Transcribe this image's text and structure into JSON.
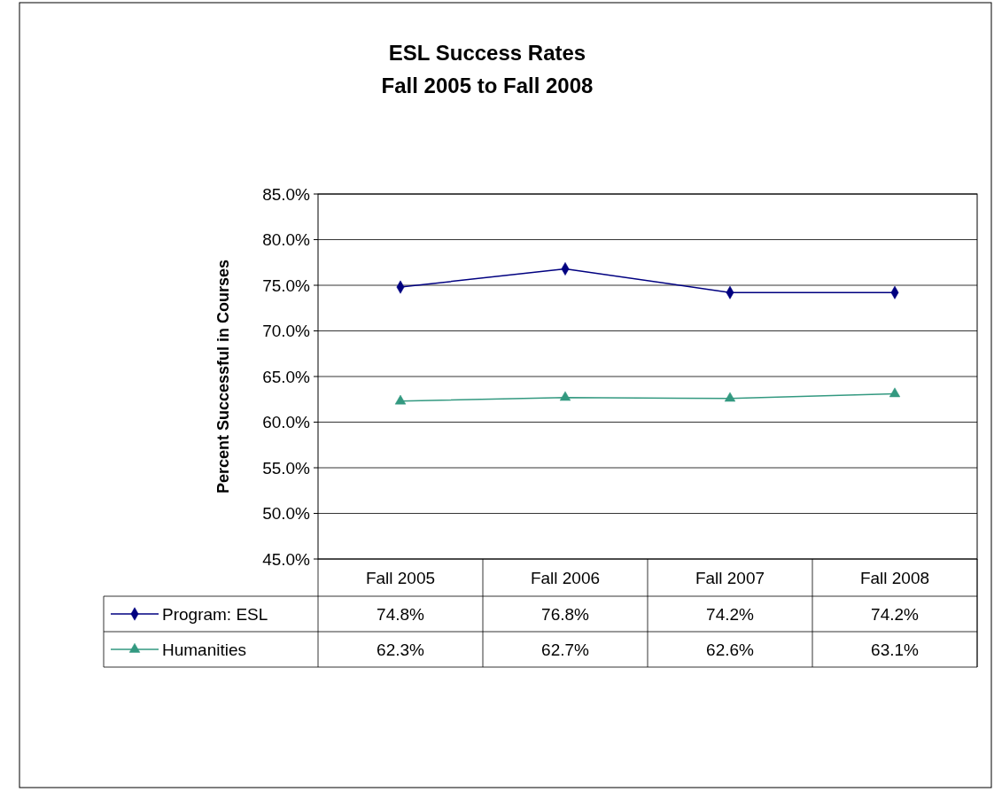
{
  "chart_data": {
    "type": "line",
    "title": "ESL Success Rates\nFall 2005 to Fall 2008",
    "ylabel": "Percent Successful in Courses",
    "categories": [
      "Fall 2005",
      "Fall 2006",
      "Fall 2007",
      "Fall 2008"
    ],
    "series": [
      {
        "name": "Program: ESL",
        "color": "#000080",
        "marker": "diamond",
        "values": [
          74.8,
          76.8,
          74.2,
          74.2
        ],
        "value_labels": [
          "74.8%",
          "76.8%",
          "74.2%",
          "74.2%"
        ]
      },
      {
        "name": "Humanities",
        "color": "#339980",
        "marker": "triangle",
        "values": [
          62.3,
          62.7,
          62.6,
          63.1
        ],
        "value_labels": [
          "62.3%",
          "62.7%",
          "62.6%",
          "63.1%"
        ]
      }
    ],
    "ylim": [
      45,
      85
    ],
    "yticks": [
      {
        "value": 45,
        "label": "45.0%"
      },
      {
        "value": 50,
        "label": "50.0%"
      },
      {
        "value": 55,
        "label": "55.0%"
      },
      {
        "value": 60,
        "label": "60.0%"
      },
      {
        "value": 65,
        "label": "65.0%"
      },
      {
        "value": 70,
        "label": "70.0%"
      },
      {
        "value": 75,
        "label": "75.0%"
      },
      {
        "value": 80,
        "label": "80.0%"
      },
      {
        "value": 85,
        "label": "85.0%"
      }
    ],
    "grid": "y",
    "legend": "bottom",
    "line_style": "solid"
  }
}
